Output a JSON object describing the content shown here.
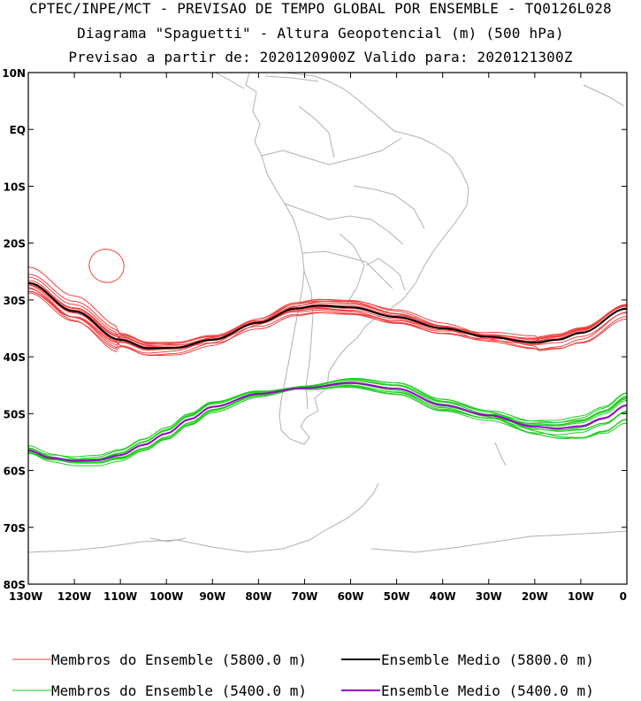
{
  "titles": {
    "line1": "CPTEC/INPE/MCT - PREVISAO DE TEMPO GLOBAL POR ENSEMBLE - TQ0126L028",
    "line2": "Diagrama \"Spaguetti\" - Altura Geopotencial (m) (500 hPa)",
    "line3": "Previsao a partir de: 2020120900Z  Valido para: 2020121300Z"
  },
  "axes": {
    "lat_labels": [
      "10N",
      "EQ",
      "10S",
      "20S",
      "30S",
      "40S",
      "50S",
      "60S",
      "70S",
      "80S"
    ],
    "lat_values": [
      10,
      0,
      -10,
      -20,
      -30,
      -40,
      -50,
      -60,
      -70,
      -80
    ],
    "lon_labels": [
      "130W",
      "120W",
      "110W",
      "100W",
      "90W",
      "80W",
      "70W",
      "60W",
      "50W",
      "40W",
      "30W",
      "20W",
      "10W",
      "0"
    ],
    "lon_values": [
      -130,
      -120,
      -110,
      -100,
      -90,
      -80,
      -70,
      -60,
      -50,
      -40,
      -30,
      -20,
      -10,
      0
    ],
    "lon_range": [
      -130,
      0
    ],
    "lat_range": [
      -80,
      10
    ]
  },
  "colors": {
    "members_5800": "#f04040",
    "members_5400": "#22cc22",
    "mean_5800": "#000000",
    "mean_5400": "#9900cc",
    "coast": "#b0b0b0"
  },
  "legend": {
    "members_5800": "Membros do Ensemble (5800.0 m)",
    "mean_5800": "Ensemble Medio (5800.0 m)",
    "members_5400": "Membros do Ensemble (5400.0 m)",
    "mean_5400": "Ensemble Medio (5400.0 m)"
  },
  "chart_data": {
    "type": "line",
    "series": [
      {
        "name": "Ensemble Medio (5800.0 m)",
        "x": [
          -130,
          -120,
          -110,
          -104,
          -98,
          -90,
          -80,
          -72,
          -67,
          -60,
          -50,
          -40,
          -30,
          -20,
          -15,
          -10,
          0
        ],
        "y": [
          -27,
          -32,
          -37,
          -38.5,
          -38.4,
          -37,
          -34,
          -31.5,
          -31,
          -31.3,
          -33,
          -35,
          -36.5,
          -37.5,
          -37,
          -35.8,
          -31.5
        ]
      },
      {
        "name": "Ensemble Medio (5400.0 m)",
        "x": [
          -130,
          -125,
          -120,
          -115,
          -110,
          -105,
          -100,
          -95,
          -90,
          -80,
          -70,
          -60,
          -50,
          -40,
          -30,
          -20,
          -15,
          -10,
          -5,
          0
        ],
        "y": [
          -56.5,
          -57.8,
          -58.3,
          -58.2,
          -57.3,
          -55.5,
          -53.5,
          -51,
          -48.8,
          -46.5,
          -45.5,
          -44.6,
          -45.6,
          -48.5,
          -50.3,
          -52.3,
          -52.6,
          -52.2,
          -50.8,
          -48.5
        ]
      }
    ],
    "annotations": [
      {
        "label": "Membros do Ensemble (5800.0 m) closed contour",
        "center": [
          -113,
          -24
        ],
        "lon_radius": 3.8,
        "lat_radius": 2.9
      }
    ]
  }
}
